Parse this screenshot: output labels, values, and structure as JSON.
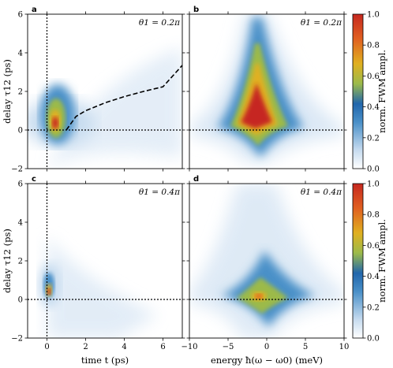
{
  "chart_data": [
    {
      "panel": "a",
      "type": "heatmap",
      "annotation": "θ1 = 0.2π",
      "xlim": [
        -1,
        7
      ],
      "ylim": [
        -2,
        6
      ],
      "xticks": [
        0,
        2,
        4,
        6
      ],
      "yticks": [
        -2,
        0,
        2,
        4,
        6
      ],
      "xlabel": "",
      "ylabel": "delay τ12 (ps)",
      "reference_lines": {
        "vertical_x": 0,
        "horizontal_y": 0
      },
      "dashed_curve": {
        "x": [
          1.0,
          1.5,
          2.0,
          3.0,
          4.0,
          5.0,
          6.0,
          7.0
        ],
        "y": [
          0.0,
          0.7,
          1.0,
          1.41,
          1.73,
          2.0,
          2.24,
          3.35
        ]
      },
      "peak": {
        "x": 0.5,
        "y": 0.3,
        "value": 1.0
      }
    },
    {
      "panel": "b",
      "type": "heatmap",
      "annotation": "θ1 = 0.2π",
      "xlim": [
        -10,
        10
      ],
      "ylim": [
        -2,
        6
      ],
      "xticks": [
        -10,
        -5,
        0,
        5,
        10
      ],
      "yticks": [
        -2,
        0,
        2,
        4,
        6
      ],
      "xlabel": "",
      "ylabel": "",
      "reference_lines": {
        "horizontal_y": 0
      },
      "peak": {
        "x": -1.0,
        "y": 0.5,
        "value": 1.0
      }
    },
    {
      "panel": "c",
      "type": "heatmap",
      "annotation": "θ1 = 0.4π",
      "xlim": [
        -1,
        7
      ],
      "ylim": [
        -2,
        6
      ],
      "xticks": [
        0,
        2,
        4,
        6
      ],
      "yticks": [
        -2,
        0,
        2,
        4,
        6
      ],
      "xlabel": "time t (ps)",
      "ylabel": "delay τ12 (ps)",
      "reference_lines": {
        "vertical_x": 0,
        "horizontal_y": 0
      },
      "peak": {
        "x": 0.1,
        "y": 0.2,
        "value": 1.0
      }
    },
    {
      "panel": "d",
      "type": "heatmap",
      "annotation": "θ1 = 0.4π",
      "xlim": [
        -10,
        10
      ],
      "ylim": [
        -2,
        6
      ],
      "xticks": [
        -10,
        -5,
        0,
        5,
        10
      ],
      "yticks": [
        -2,
        0,
        2,
        4,
        6
      ],
      "xlabel": "energy ħ(ω − ω0) (meV)",
      "ylabel": "",
      "reference_lines": {
        "horizontal_y": 0
      },
      "peak": {
        "x": -1.0,
        "y": 0.3,
        "value": 0.8
      }
    }
  ],
  "colorbar": {
    "label": "norm. FWM ampl.",
    "range": [
      0.0,
      1.0
    ],
    "ticks": [
      0.0,
      0.2,
      0.4,
      0.6,
      0.8,
      1.0
    ],
    "tick_labels": [
      "0.0",
      "0.2",
      "0.4",
      "0.6",
      "0.8",
      "1.0"
    ],
    "colors": [
      "#ffffff",
      "#c6dbef",
      "#4a90c8",
      "#2166ac",
      "#b8c640",
      "#e0b020",
      "#e06020",
      "#c62820"
    ]
  }
}
